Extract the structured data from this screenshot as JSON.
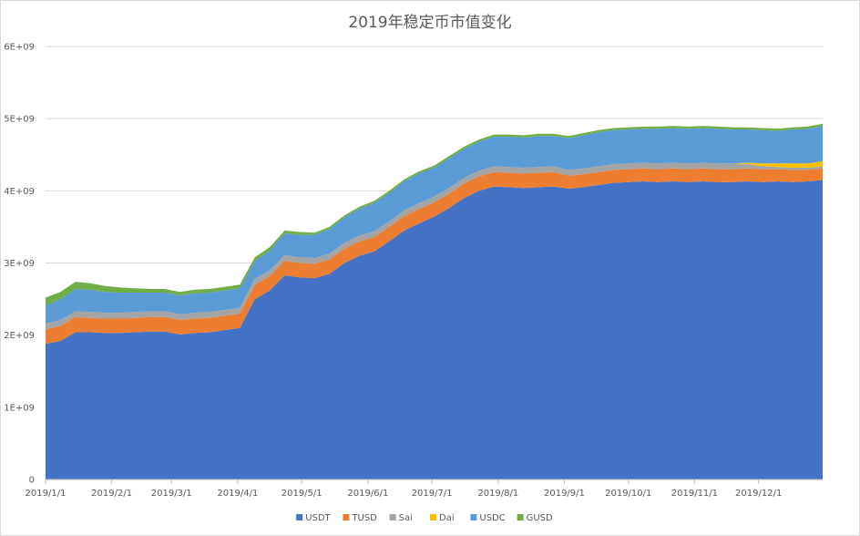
{
  "chart_data": {
    "type": "area",
    "stacked": true,
    "title": "2019年稳定币市值变化",
    "xlabel": "",
    "ylabel": "",
    "ylim": [
      0,
      6000000000
    ],
    "y_ticks": [
      "0",
      "1E+09",
      "2E+09",
      "3E+09",
      "4E+09",
      "5E+09",
      "6E+09"
    ],
    "x_ticks": [
      "2019/1/1",
      "2019/2/1",
      "2019/3/1",
      "2019/4/1",
      "2019/5/1",
      "2019/6/1",
      "2019/7/1",
      "2019/8/1",
      "2019/9/1",
      "2019/10/1",
      "2019/11/1",
      "2019/12/1"
    ],
    "grid": "horizontal",
    "legend_position": "bottom",
    "x": [
      "2019-01-01",
      "2019-01-08",
      "2019-01-15",
      "2019-01-22",
      "2019-01-29",
      "2019-02-05",
      "2019-02-12",
      "2019-02-19",
      "2019-02-26",
      "2019-03-05",
      "2019-03-12",
      "2019-03-19",
      "2019-03-26",
      "2019-04-02",
      "2019-04-09",
      "2019-04-16",
      "2019-04-23",
      "2019-04-30",
      "2019-05-07",
      "2019-05-14",
      "2019-05-21",
      "2019-05-28",
      "2019-06-04",
      "2019-06-11",
      "2019-06-18",
      "2019-06-25",
      "2019-07-02",
      "2019-07-09",
      "2019-07-16",
      "2019-07-23",
      "2019-07-30",
      "2019-08-06",
      "2019-08-13",
      "2019-08-20",
      "2019-08-27",
      "2019-09-03",
      "2019-09-10",
      "2019-09-17",
      "2019-09-24",
      "2019-10-01",
      "2019-10-08",
      "2019-10-15",
      "2019-10-22",
      "2019-10-29",
      "2019-11-05",
      "2019-11-12",
      "2019-11-19",
      "2019-11-26",
      "2019-12-03",
      "2019-12-10",
      "2019-12-17",
      "2019-12-24",
      "2019-12-31"
    ],
    "series": [
      {
        "name": "USDT",
        "color": "#4472c4",
        "values": [
          1880000000,
          1920000000,
          2040000000,
          2040000000,
          2030000000,
          2030000000,
          2040000000,
          2050000000,
          2050000000,
          2010000000,
          2030000000,
          2040000000,
          2070000000,
          2100000000,
          2500000000,
          2620000000,
          2830000000,
          2800000000,
          2790000000,
          2850000000,
          3000000000,
          3100000000,
          3160000000,
          3300000000,
          3450000000,
          3550000000,
          3640000000,
          3760000000,
          3900000000,
          4000000000,
          4060000000,
          4050000000,
          4040000000,
          4050000000,
          4060000000,
          4030000000,
          4050000000,
          4080000000,
          4110000000,
          4120000000,
          4130000000,
          4120000000,
          4130000000,
          4120000000,
          4130000000,
          4120000000,
          4120000000,
          4130000000,
          4120000000,
          4130000000,
          4120000000,
          4130000000,
          4150000000
        ]
      },
      {
        "name": "TUSD",
        "color": "#ed7d31",
        "values": [
          200000000,
          210000000,
          210000000,
          200000000,
          200000000,
          200000000,
          200000000,
          200000000,
          200000000,
          200000000,
          200000000,
          200000000,
          200000000,
          200000000,
          200000000,
          200000000,
          200000000,
          200000000,
          200000000,
          200000000,
          200000000,
          200000000,
          200000000,
          200000000,
          200000000,
          200000000,
          200000000,
          200000000,
          200000000,
          200000000,
          200000000,
          200000000,
          200000000,
          200000000,
          200000000,
          180000000,
          180000000,
          180000000,
          180000000,
          180000000,
          180000000,
          180000000,
          180000000,
          180000000,
          180000000,
          180000000,
          180000000,
          180000000,
          180000000,
          170000000,
          170000000,
          160000000,
          160000000
        ]
      },
      {
        "name": "Sai",
        "color": "#a5a5a5",
        "values": [
          80000000,
          80000000,
          80000000,
          80000000,
          80000000,
          80000000,
          80000000,
          80000000,
          80000000,
          80000000,
          80000000,
          80000000,
          80000000,
          80000000,
          80000000,
          80000000,
          80000000,
          80000000,
          80000000,
          80000000,
          80000000,
          80000000,
          80000000,
          80000000,
          80000000,
          80000000,
          80000000,
          80000000,
          80000000,
          80000000,
          80000000,
          80000000,
          80000000,
          80000000,
          80000000,
          80000000,
          80000000,
          80000000,
          80000000,
          80000000,
          80000000,
          80000000,
          80000000,
          80000000,
          80000000,
          80000000,
          80000000,
          60000000,
          40000000,
          30000000,
          30000000,
          30000000,
          30000000
        ]
      },
      {
        "name": "Dai",
        "color": "#ffc000",
        "values": [
          0,
          0,
          0,
          0,
          0,
          0,
          0,
          0,
          0,
          0,
          0,
          0,
          0,
          0,
          0,
          0,
          0,
          0,
          0,
          0,
          0,
          0,
          0,
          0,
          0,
          0,
          0,
          0,
          0,
          0,
          0,
          0,
          0,
          0,
          0,
          0,
          0,
          0,
          0,
          0,
          0,
          0,
          0,
          0,
          0,
          0,
          0,
          20000000,
          40000000,
          50000000,
          60000000,
          60000000,
          70000000
        ]
      },
      {
        "name": "USDC",
        "color": "#5b9bd5",
        "values": [
          250000000,
          290000000,
          310000000,
          310000000,
          290000000,
          280000000,
          270000000,
          260000000,
          260000000,
          260000000,
          270000000,
          270000000,
          270000000,
          270000000,
          250000000,
          270000000,
          300000000,
          310000000,
          320000000,
          340000000,
          350000000,
          370000000,
          390000000,
          390000000,
          400000000,
          410000000,
          400000000,
          410000000,
          400000000,
          400000000,
          410000000,
          420000000,
          420000000,
          430000000,
          420000000,
          440000000,
          460000000,
          470000000,
          470000000,
          470000000,
          470000000,
          480000000,
          480000000,
          480000000,
          480000000,
          480000000,
          470000000,
          460000000,
          460000000,
          450000000,
          470000000,
          480000000,
          490000000
        ]
      },
      {
        "name": "GUSD",
        "color": "#70ad47",
        "values": [
          110000000,
          100000000,
          100000000,
          90000000,
          80000000,
          70000000,
          60000000,
          50000000,
          50000000,
          50000000,
          50000000,
          50000000,
          50000000,
          50000000,
          50000000,
          50000000,
          40000000,
          40000000,
          30000000,
          30000000,
          30000000,
          30000000,
          30000000,
          30000000,
          30000000,
          30000000,
          30000000,
          30000000,
          30000000,
          30000000,
          30000000,
          30000000,
          30000000,
          30000000,
          30000000,
          30000000,
          30000000,
          30000000,
          30000000,
          30000000,
          30000000,
          30000000,
          30000000,
          30000000,
          30000000,
          30000000,
          30000000,
          30000000,
          30000000,
          30000000,
          30000000,
          30000000,
          30000000
        ]
      }
    ]
  }
}
